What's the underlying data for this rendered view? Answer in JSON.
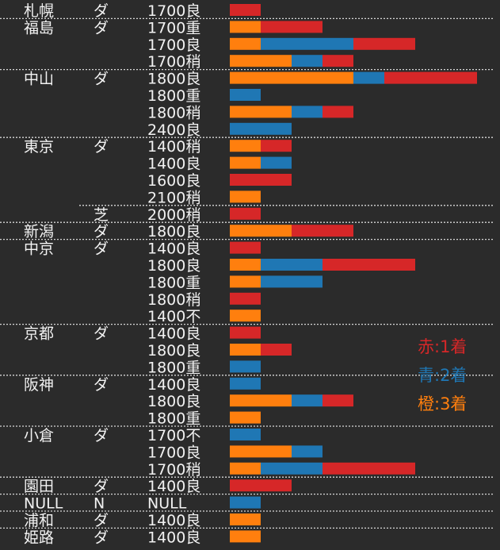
{
  "chart_data": {
    "type": "bar",
    "orientation": "horizontal",
    "stacked": true,
    "unit_note": "bar segment lengths are in counts (one unit = one block)",
    "colors": {
      "first": "#d62728",
      "second": "#1f77b4",
      "third": "#ff7f0e"
    },
    "legend": [
      {
        "label": "赤:1着",
        "key": "first"
      },
      {
        "label": "青:2着",
        "key": "second"
      },
      {
        "label": "橙:3着",
        "key": "third"
      }
    ],
    "rows": [
      {
        "venue": "札幌",
        "surface": "ダ",
        "condition": "1700良",
        "third": 0,
        "second": 0,
        "first": 1
      },
      {
        "venue": "福島",
        "surface": "ダ",
        "condition": "1700重",
        "third": 1,
        "second": 0,
        "first": 2
      },
      {
        "venue": "",
        "surface": "",
        "condition": "1700良",
        "third": 1,
        "second": 3,
        "first": 2
      },
      {
        "venue": "",
        "surface": "",
        "condition": "1700稍",
        "third": 2,
        "second": 1,
        "first": 1
      },
      {
        "venue": "中山",
        "surface": "ダ",
        "condition": "1800良",
        "third": 4,
        "second": 1,
        "first": 3
      },
      {
        "venue": "",
        "surface": "",
        "condition": "1800重",
        "third": 0,
        "second": 1,
        "first": 0
      },
      {
        "venue": "",
        "surface": "",
        "condition": "1800稍",
        "third": 2,
        "second": 1,
        "first": 1
      },
      {
        "venue": "",
        "surface": "",
        "condition": "2400良",
        "third": 0,
        "second": 2,
        "first": 0
      },
      {
        "venue": "東京",
        "surface": "ダ",
        "condition": "1400稍",
        "third": 1,
        "second": 0,
        "first": 1
      },
      {
        "venue": "",
        "surface": "",
        "condition": "1400良",
        "third": 1,
        "second": 1,
        "first": 0
      },
      {
        "venue": "",
        "surface": "",
        "condition": "1600良",
        "third": 0,
        "second": 0,
        "first": 2
      },
      {
        "venue": "",
        "surface": "",
        "condition": "2100稍",
        "third": 1,
        "second": 0,
        "first": 0
      },
      {
        "venue": "",
        "surface": "芝",
        "condition": "2000稍",
        "third": 0,
        "second": 0,
        "first": 1
      },
      {
        "venue": "新潟",
        "surface": "ダ",
        "condition": "1800良",
        "third": 2,
        "second": 0,
        "first": 2
      },
      {
        "venue": "中京",
        "surface": "ダ",
        "condition": "1400良",
        "third": 0,
        "second": 0,
        "first": 1
      },
      {
        "venue": "",
        "surface": "",
        "condition": "1800良",
        "third": 1,
        "second": 2,
        "first": 3
      },
      {
        "venue": "",
        "surface": "",
        "condition": "1800重",
        "third": 1,
        "second": 2,
        "first": 0
      },
      {
        "venue": "",
        "surface": "",
        "condition": "1800稍",
        "third": 0,
        "second": 0,
        "first": 1
      },
      {
        "venue": "",
        "surface": "",
        "condition": "1400不",
        "third": 1,
        "second": 0,
        "first": 0
      },
      {
        "venue": "京都",
        "surface": "ダ",
        "condition": "1400良",
        "third": 0,
        "second": 0,
        "first": 1
      },
      {
        "venue": "",
        "surface": "",
        "condition": "1800良",
        "third": 1,
        "second": 0,
        "first": 1
      },
      {
        "venue": "",
        "surface": "",
        "condition": "1800重",
        "third": 0,
        "second": 1,
        "first": 0
      },
      {
        "venue": "阪神",
        "surface": "ダ",
        "condition": "1400良",
        "third": 0,
        "second": 1,
        "first": 0
      },
      {
        "venue": "",
        "surface": "",
        "condition": "1800良",
        "third": 2,
        "second": 1,
        "first": 1
      },
      {
        "venue": "",
        "surface": "",
        "condition": "1800重",
        "third": 1,
        "second": 0,
        "first": 0
      },
      {
        "venue": "小倉",
        "surface": "ダ",
        "condition": "1700不",
        "third": 0,
        "second": 1,
        "first": 0
      },
      {
        "venue": "",
        "surface": "",
        "condition": "1700良",
        "third": 2,
        "second": 1,
        "first": 0
      },
      {
        "venue": "",
        "surface": "",
        "condition": "1700稍",
        "third": 1,
        "second": 2,
        "first": 3
      },
      {
        "venue": "園田",
        "surface": "ダ",
        "condition": "1400良",
        "third": 0,
        "second": 0,
        "first": 2
      },
      {
        "venue": "NULL",
        "surface": "N",
        "condition": "NULL",
        "third": 0,
        "second": 1,
        "first": 0
      },
      {
        "venue": "浦和",
        "surface": "ダ",
        "condition": "1400良",
        "third": 1,
        "second": 0,
        "first": 0
      },
      {
        "venue": "姫路",
        "surface": "ダ",
        "condition": "1400良",
        "third": 1,
        "second": 0,
        "first": 0
      }
    ],
    "separators_before": [
      {
        "row": 1,
        "span": "full"
      },
      {
        "row": 4,
        "span": "full"
      },
      {
        "row": 8,
        "span": "full"
      },
      {
        "row": 12,
        "span": "partial"
      },
      {
        "row": 13,
        "span": "full"
      },
      {
        "row": 14,
        "span": "full"
      },
      {
        "row": 19,
        "span": "full"
      },
      {
        "row": 22,
        "span": "full"
      },
      {
        "row": 25,
        "span": "full"
      },
      {
        "row": 28,
        "span": "full"
      },
      {
        "row": 29,
        "span": "full"
      },
      {
        "row": 30,
        "span": "full"
      },
      {
        "row": 31,
        "span": "full"
      }
    ]
  }
}
